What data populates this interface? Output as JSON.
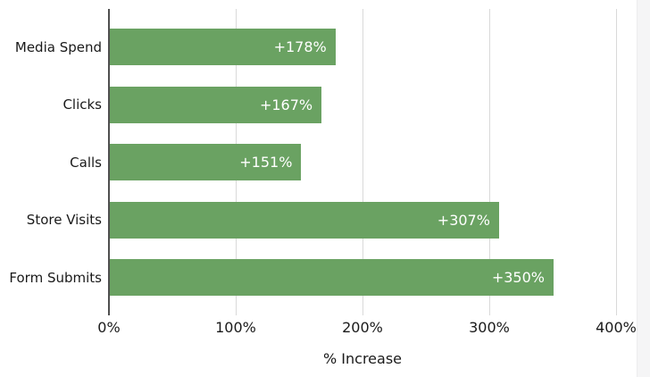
{
  "chart_data": {
    "type": "bar",
    "orientation": "horizontal",
    "title": "",
    "xlabel": "% Increase",
    "ylabel": "",
    "categories": [
      "Media Spend",
      "Clicks",
      "Calls",
      "Store Visits",
      "Form Submits"
    ],
    "values": [
      178,
      167,
      151,
      307,
      350
    ],
    "bar_labels": [
      "+178%",
      "+167%",
      "+151%",
      "+307%",
      "+350%"
    ],
    "xlim": [
      0,
      400
    ],
    "x_ticks": [
      {
        "value": 0,
        "label": "0%"
      },
      {
        "value": 100,
        "label": "100%"
      },
      {
        "value": 200,
        "label": "200%"
      },
      {
        "value": 300,
        "label": "300%"
      },
      {
        "value": 400,
        "label": "400%"
      }
    ],
    "grid": true,
    "legend": false,
    "colors": {
      "bar": "#6aa262",
      "bar_label": "#ffffff",
      "axis_line": "#4f4f4f",
      "gridline": "#d9d9d9",
      "text": "#1a1a1a",
      "background": "#ffffff",
      "window_edge": "#f5f5f6"
    }
  }
}
